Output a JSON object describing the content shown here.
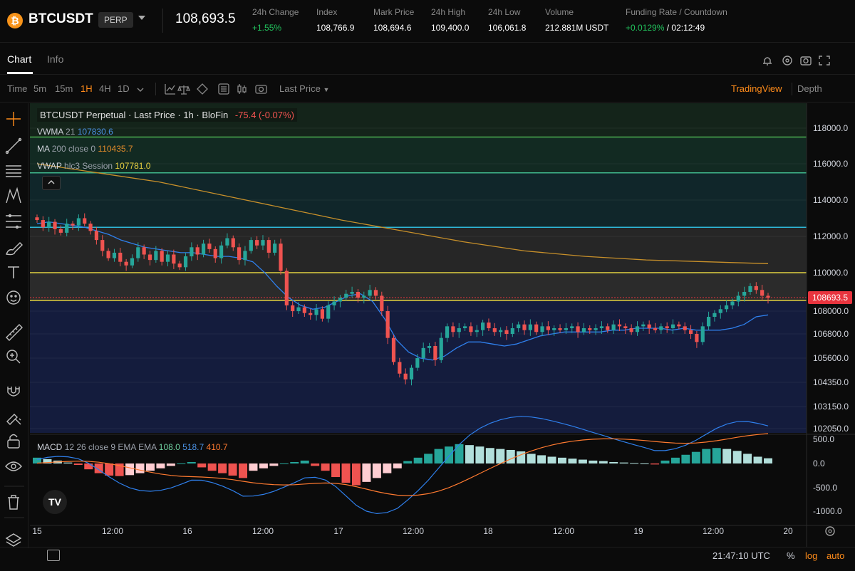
{
  "header": {
    "symbol": "BTCUSDT",
    "contract_type": "PERP",
    "last_price": "108,693.5",
    "stats": [
      {
        "label": "24h Change",
        "value": "+1.55%",
        "tone": "green"
      },
      {
        "label": "Index",
        "value": "108,766.9",
        "tone": "white"
      },
      {
        "label": "Mark Price",
        "value": "108,694.6",
        "tone": "white"
      },
      {
        "label": "24h High",
        "value": "109,400.0",
        "tone": "white"
      },
      {
        "label": "24h Low",
        "value": "106,061.8",
        "tone": "white"
      },
      {
        "label": "Volume",
        "value": "212.881M USDT",
        "tone": "white"
      }
    ],
    "funding": {
      "label": "Funding Rate / Countdown",
      "rate": "+0.0129%",
      "countdown": "/ 02:12:49"
    }
  },
  "tabs": {
    "chart": "Chart",
    "info": "Info"
  },
  "toolbar": {
    "time_label": "Time",
    "intervals": [
      "5m",
      "15m",
      "1H",
      "4H",
      "1D"
    ],
    "active_interval": "1H",
    "price_type": "Last Price",
    "tradingview": "TradingView",
    "depth": "Depth"
  },
  "legend": {
    "main_title": "BTCUSDT Perpetual · Last Price · 1h · BloFin",
    "main_change": "-75.4 (-0.07%)",
    "vwma_label": "VWMA",
    "vwma_param": "21",
    "vwma_value": "107830.6",
    "ma_label": "MA",
    "ma_param": "200 close 0",
    "ma_value": "110435.7",
    "vwap_label": "VWAP",
    "vwap_param": "hlc3 Session",
    "vwap_value": "107781.0",
    "macd_label": "MACD",
    "macd_param": "12 26 close 9 EMA EMA",
    "macd_hist": "108.0",
    "macd_line": "518.7",
    "macd_signal": "410.7"
  },
  "colors": {
    "up": "#26a69a",
    "down": "#ef5350",
    "accent": "#ff8c1a",
    "vwma": "#2f80ed",
    "ma200": "#c8902a",
    "vwap": "#e0c040",
    "current_price_tag": "#e8343e"
  },
  "price_axis": {
    "ticks": [
      "118000.0",
      "116000.0",
      "114000.0",
      "112000.0",
      "110000.0",
      "108000.0",
      "106800.0",
      "105600.0",
      "104350.0",
      "103150.0",
      "102050.0"
    ],
    "current_price": "108693.5"
  },
  "macd_axis": {
    "ticks": [
      "500.0",
      "0.0",
      "-500.0",
      "-1000.0"
    ]
  },
  "time_axis": {
    "ticks": [
      "15",
      "12:00",
      "16",
      "12:00",
      "17",
      "12:00",
      "18",
      "12:00",
      "19",
      "12:00",
      "20"
    ]
  },
  "footer": {
    "clock": "21:47:10 UTC",
    "percent": "%",
    "log": "log",
    "auto": "auto"
  },
  "chart_data": {
    "type": "candlestick",
    "symbol": "BTCUSDT Perpetual",
    "interval": "1h",
    "ylim": [
      101800,
      118800
    ],
    "y_scale": "nonlinear",
    "horizontal_levels": [
      117500,
      115500,
      112500,
      110000,
      108400
    ],
    "candles_close": [
      112900,
      112500,
      112800,
      112400,
      112200,
      112700,
      112600,
      113000,
      112700,
      112300,
      111800,
      111200,
      110800,
      111100,
      110600,
      110400,
      110800,
      111400,
      111000,
      110700,
      111200,
      110600,
      111000,
      110500,
      110300,
      110900,
      111400,
      111000,
      111600,
      111300,
      110800,
      111500,
      111900,
      111400,
      110700,
      111200,
      111800,
      111500,
      111800,
      111100,
      111600,
      110100,
      108300,
      108000,
      108200,
      107900,
      107800,
      108100,
      107600,
      108300,
      108500,
      108700,
      108900,
      109000,
      108700,
      108800,
      109100,
      108800,
      108000,
      106600,
      105400,
      104800,
      104500,
      105100,
      105600,
      106100,
      106200,
      105500,
      106600,
      107200,
      106900,
      107100,
      107200,
      106900,
      107000,
      107400,
      107100,
      106900,
      107000,
      106800,
      107100,
      107300,
      107000,
      107300,
      106900,
      107200,
      107000,
      107100,
      107000,
      107100,
      107200,
      106900,
      107100,
      107000,
      107100,
      107200,
      107000,
      107300,
      107200,
      107100,
      106900,
      107200,
      107300,
      107100,
      107000,
      107200,
      107100,
      107300,
      107200,
      107000,
      106800,
      106400,
      107200,
      107700,
      107900,
      108100,
      108300,
      108500,
      108800,
      109000,
      109300,
      109100,
      108800,
      108700
    ],
    "vwma_21": [
      112700,
      112800,
      112700,
      112600,
      112500,
      112300,
      112100,
      111800,
      111600,
      111400,
      111300,
      111200,
      111100,
      111100,
      111000,
      110900,
      110900,
      110800,
      110600,
      110000,
      109300,
      108700,
      108300,
      108100,
      108200,
      108500,
      108800,
      108900,
      108500,
      107600,
      106500,
      105900,
      105600,
      105500,
      105700,
      106100,
      106400,
      106400,
      106300,
      106200,
      106300,
      106500,
      106700,
      106800,
      106900,
      106900,
      106900,
      106900,
      107000,
      107000,
      107100,
      107100,
      107100,
      107000,
      107100,
      107000,
      107000,
      107000,
      107100,
      107300,
      107700,
      107800
    ],
    "ma_200": [
      116000,
      115500,
      115000,
      114300,
      113600,
      112900,
      112300,
      111700,
      111200,
      110900,
      110700,
      110600,
      110500
    ],
    "macd_hist": [
      120,
      90,
      60,
      20,
      -30,
      -120,
      -200,
      -250,
      -260,
      -240,
      -200,
      -150,
      -100,
      -50,
      0,
      30,
      -80,
      -150,
      -200,
      -250,
      -300,
      -150,
      -100,
      -50,
      0,
      30,
      60,
      -50,
      -150,
      -280,
      -400,
      -450,
      -380,
      -300,
      -200,
      -100,
      50,
      120,
      200,
      300,
      350,
      400,
      380,
      350,
      320,
      300,
      280,
      250,
      200,
      170,
      140,
      120,
      100,
      80,
      60,
      50,
      30,
      20,
      10,
      0,
      -20,
      60,
      120,
      180,
      240,
      300,
      320,
      300,
      260,
      200,
      140,
      108
    ]
  }
}
